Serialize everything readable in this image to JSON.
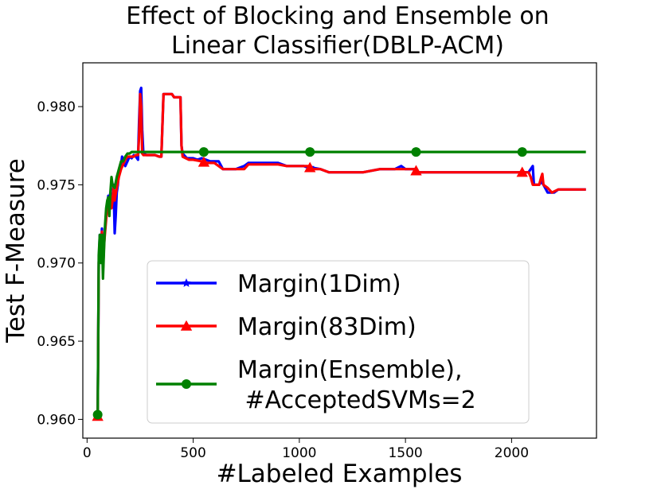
{
  "chart_data": {
    "type": "line",
    "title_lines": [
      "Effect of Blocking and Ensemble on",
      "Linear Classifier(DBLP-ACM)"
    ],
    "xlabel": "#Labeled Examples",
    "ylabel": "Test F-Measure",
    "xlim": [
      -20,
      2400
    ],
    "ylim": [
      0.9588,
      0.9828
    ],
    "xticks": [
      0,
      500,
      1000,
      1500,
      2000
    ],
    "xtick_labels": [
      "0",
      "500",
      "1000",
      "1500",
      "2000"
    ],
    "yticks": [
      0.96,
      0.965,
      0.97,
      0.975,
      0.98
    ],
    "ytick_labels": [
      "0.960",
      "0.965",
      "0.970",
      "0.975",
      "0.980"
    ],
    "grid": false,
    "legend_position": "lower-right",
    "series": [
      {
        "name": "Margin(1Dim)",
        "legend_lines": [
          "Margin(1Dim)"
        ],
        "color": "#0000ff",
        "marker": "star",
        "markers_at": [
          1050
        ],
        "points": [
          [
            50,
            0.9603
          ],
          [
            55,
            0.97
          ],
          [
            60,
            0.9718
          ],
          [
            65,
            0.9705
          ],
          [
            70,
            0.9722
          ],
          [
            75,
            0.9698
          ],
          [
            80,
            0.9715
          ],
          [
            85,
            0.9722
          ],
          [
            90,
            0.973
          ],
          [
            95,
            0.9738
          ],
          [
            100,
            0.9743
          ],
          [
            105,
            0.974
          ],
          [
            110,
            0.9745
          ],
          [
            115,
            0.9735
          ],
          [
            120,
            0.9742
          ],
          [
            125,
            0.975
          ],
          [
            130,
            0.9719
          ],
          [
            135,
            0.973
          ],
          [
            140,
            0.9745
          ],
          [
            145,
            0.975
          ],
          [
            150,
            0.9758
          ],
          [
            155,
            0.976
          ],
          [
            160,
            0.9763
          ],
          [
            165,
            0.9768
          ],
          [
            170,
            0.9766
          ],
          [
            180,
            0.9762
          ],
          [
            190,
            0.9765
          ],
          [
            200,
            0.9768
          ],
          [
            210,
            0.9767
          ],
          [
            220,
            0.9769
          ],
          [
            230,
            0.9768
          ],
          [
            240,
            0.9766
          ],
          [
            245,
            0.979
          ],
          [
            250,
            0.981
          ],
          [
            255,
            0.9812
          ],
          [
            260,
            0.9785
          ],
          [
            265,
            0.977
          ],
          [
            280,
            0.9769
          ],
          [
            300,
            0.9769
          ],
          [
            320,
            0.9769
          ],
          [
            340,
            0.9768
          ],
          [
            350,
            0.9768
          ],
          [
            360,
            0.9808
          ],
          [
            380,
            0.9808
          ],
          [
            400,
            0.9808
          ],
          [
            410,
            0.9806
          ],
          [
            440,
            0.9806
          ],
          [
            445,
            0.9775
          ],
          [
            450,
            0.977
          ],
          [
            470,
            0.9767
          ],
          [
            500,
            0.9767
          ],
          [
            520,
            0.9766
          ],
          [
            540,
            0.9767
          ],
          [
            560,
            0.9766
          ],
          [
            580,
            0.9765
          ],
          [
            600,
            0.9765
          ],
          [
            620,
            0.9765
          ],
          [
            640,
            0.976
          ],
          [
            700,
            0.976
          ],
          [
            740,
            0.9762
          ],
          [
            760,
            0.9764
          ],
          [
            800,
            0.9764
          ],
          [
            860,
            0.9764
          ],
          [
            900,
            0.9764
          ],
          [
            940,
            0.9762
          ],
          [
            980,
            0.9762
          ],
          [
            1020,
            0.9762
          ],
          [
            1040,
            0.9761
          ],
          [
            1060,
            0.9761
          ],
          [
            1100,
            0.976
          ],
          [
            1140,
            0.9758
          ],
          [
            1200,
            0.9758
          ],
          [
            1300,
            0.9758
          ],
          [
            1380,
            0.976
          ],
          [
            1450,
            0.976
          ],
          [
            1480,
            0.9762
          ],
          [
            1500,
            0.976
          ],
          [
            1540,
            0.976
          ],
          [
            1560,
            0.9758
          ],
          [
            1700,
            0.9758
          ],
          [
            1900,
            0.9758
          ],
          [
            2000,
            0.9758
          ],
          [
            2080,
            0.9758
          ],
          [
            2090,
            0.976
          ],
          [
            2100,
            0.9762
          ],
          [
            2105,
            0.975
          ],
          [
            2130,
            0.975
          ],
          [
            2140,
            0.9752
          ],
          [
            2150,
            0.975
          ],
          [
            2170,
            0.9745
          ],
          [
            2200,
            0.9745
          ],
          [
            2220,
            0.9747
          ],
          [
            2250,
            0.9747
          ],
          [
            2300,
            0.9747
          ],
          [
            2350,
            0.9747
          ]
        ]
      },
      {
        "name": "Margin(83Dim)",
        "legend_lines": [
          "Margin(83Dim)"
        ],
        "color": "#ff0000",
        "marker": "triangle",
        "markers_at": [
          50,
          550,
          1050,
          1550,
          2050
        ],
        "points": [
          [
            50,
            0.9602
          ],
          [
            55,
            0.97
          ],
          [
            60,
            0.9715
          ],
          [
            65,
            0.9702
          ],
          [
            70,
            0.972
          ],
          [
            75,
            0.9695
          ],
          [
            80,
            0.9712
          ],
          [
            85,
            0.972
          ],
          [
            90,
            0.9728
          ],
          [
            95,
            0.9735
          ],
          [
            100,
            0.974
          ],
          [
            105,
            0.9738
          ],
          [
            110,
            0.9743
          ],
          [
            115,
            0.9735
          ],
          [
            120,
            0.974
          ],
          [
            125,
            0.9748
          ],
          [
            130,
            0.974
          ],
          [
            140,
            0.9748
          ],
          [
            150,
            0.9755
          ],
          [
            160,
            0.976
          ],
          [
            170,
            0.9763
          ],
          [
            180,
            0.9766
          ],
          [
            190,
            0.9768
          ],
          [
            200,
            0.9768
          ],
          [
            210,
            0.9768
          ],
          [
            220,
            0.9768
          ],
          [
            230,
            0.9769
          ],
          [
            240,
            0.9769
          ],
          [
            245,
            0.978
          ],
          [
            250,
            0.9808
          ],
          [
            255,
            0.98
          ],
          [
            260,
            0.977
          ],
          [
            265,
            0.9769
          ],
          [
            280,
            0.9769
          ],
          [
            300,
            0.9769
          ],
          [
            320,
            0.9769
          ],
          [
            340,
            0.9768
          ],
          [
            350,
            0.9768
          ],
          [
            360,
            0.9808
          ],
          [
            380,
            0.9808
          ],
          [
            400,
            0.9808
          ],
          [
            410,
            0.9806
          ],
          [
            440,
            0.9806
          ],
          [
            445,
            0.9775
          ],
          [
            450,
            0.9768
          ],
          [
            480,
            0.9766
          ],
          [
            500,
            0.9766
          ],
          [
            540,
            0.9765
          ],
          [
            560,
            0.9764
          ],
          [
            600,
            0.9764
          ],
          [
            640,
            0.976
          ],
          [
            700,
            0.976
          ],
          [
            740,
            0.976
          ],
          [
            760,
            0.9763
          ],
          [
            800,
            0.9763
          ],
          [
            900,
            0.9763
          ],
          [
            940,
            0.9762
          ],
          [
            1000,
            0.9762
          ],
          [
            1040,
            0.9762
          ],
          [
            1060,
            0.976
          ],
          [
            1100,
            0.976
          ],
          [
            1140,
            0.9758
          ],
          [
            1200,
            0.9758
          ],
          [
            1300,
            0.9758
          ],
          [
            1380,
            0.976
          ],
          [
            1500,
            0.976
          ],
          [
            1540,
            0.976
          ],
          [
            1560,
            0.9758
          ],
          [
            1700,
            0.9758
          ],
          [
            1900,
            0.9758
          ],
          [
            2000,
            0.9758
          ],
          [
            2080,
            0.9758
          ],
          [
            2090,
            0.9755
          ],
          [
            2100,
            0.975
          ],
          [
            2130,
            0.975
          ],
          [
            2140,
            0.9755
          ],
          [
            2145,
            0.9757
          ],
          [
            2150,
            0.975
          ],
          [
            2170,
            0.9748
          ],
          [
            2190,
            0.9745
          ],
          [
            2220,
            0.9747
          ],
          [
            2250,
            0.9747
          ],
          [
            2300,
            0.9747
          ],
          [
            2350,
            0.9747
          ]
        ]
      },
      {
        "name": "Margin(Ensemble), #AcceptedSVMs=2",
        "legend_lines": [
          "Margin(Ensemble),",
          " #AcceptedSVMs=2"
        ],
        "color": "#008000",
        "marker": "circle",
        "markers_at": [
          50,
          550,
          1050,
          1550,
          2050
        ],
        "points": [
          [
            50,
            0.9603
          ],
          [
            55,
            0.9705
          ],
          [
            60,
            0.9718
          ],
          [
            65,
            0.97
          ],
          [
            70,
            0.9718
          ],
          [
            75,
            0.969
          ],
          [
            80,
            0.971
          ],
          [
            85,
            0.9725
          ],
          [
            90,
            0.9735
          ],
          [
            95,
            0.974
          ],
          [
            100,
            0.9742
          ],
          [
            105,
            0.973
          ],
          [
            110,
            0.9745
          ],
          [
            115,
            0.9755
          ],
          [
            120,
            0.975
          ],
          [
            130,
            0.9748
          ],
          [
            140,
            0.9755
          ],
          [
            150,
            0.976
          ],
          [
            160,
            0.9765
          ],
          [
            170,
            0.9765
          ],
          [
            180,
            0.9768
          ],
          [
            190,
            0.977
          ],
          [
            200,
            0.977
          ],
          [
            210,
            0.9771
          ],
          [
            2350,
            0.9771
          ]
        ]
      }
    ]
  }
}
